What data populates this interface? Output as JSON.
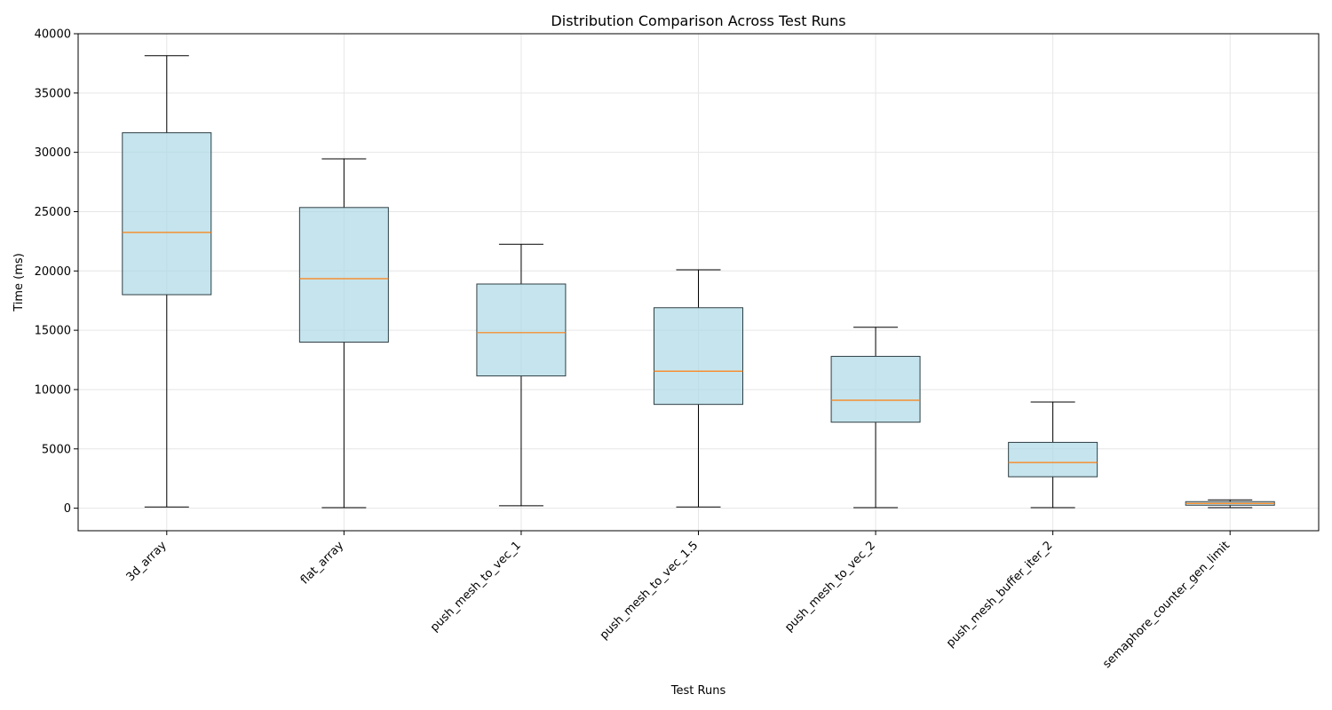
{
  "chart_data": {
    "type": "box",
    "title": "Distribution Comparison Across Test Runs",
    "xlabel": "Test Runs",
    "ylabel": "Time (ms)",
    "ylim": [
      -1900,
      40000
    ],
    "yticks": [
      0,
      5000,
      10000,
      15000,
      20000,
      25000,
      30000,
      35000,
      40000
    ],
    "grid": true,
    "colors": {
      "box_fill": "#add8e6",
      "box_edge": "#2f3f44",
      "median": "#ff7f0e",
      "whisker": "#000000",
      "grid": "#e6e6e6"
    },
    "categories": [
      "3d_array",
      "flat_array",
      "push_mesh_to_vec_1",
      "push_mesh_to_vec_1.5",
      "push_mesh_to_vec_2",
      "push_mesh_buffer_iter_2",
      "semaphore_counter_gen_limit"
    ],
    "boxes": [
      {
        "whislo": 100,
        "q1": 18000,
        "med": 23250,
        "q3": 31650,
        "whishi": 38150
      },
      {
        "whislo": 50,
        "q1": 14000,
        "med": 19350,
        "q3": 25350,
        "whishi": 29450
      },
      {
        "whislo": 200,
        "q1": 11150,
        "med": 14800,
        "q3": 18900,
        "whishi": 22250
      },
      {
        "whislo": 100,
        "q1": 8750,
        "med": 11550,
        "q3": 16900,
        "whishi": 20100
      },
      {
        "whislo": 50,
        "q1": 7250,
        "med": 9100,
        "q3": 12800,
        "whishi": 15250
      },
      {
        "whislo": 50,
        "q1": 2650,
        "med": 3850,
        "q3": 5550,
        "whishi": 8950
      },
      {
        "whislo": 50,
        "q1": 250,
        "med": 400,
        "q3": 550,
        "whishi": 700
      }
    ]
  }
}
